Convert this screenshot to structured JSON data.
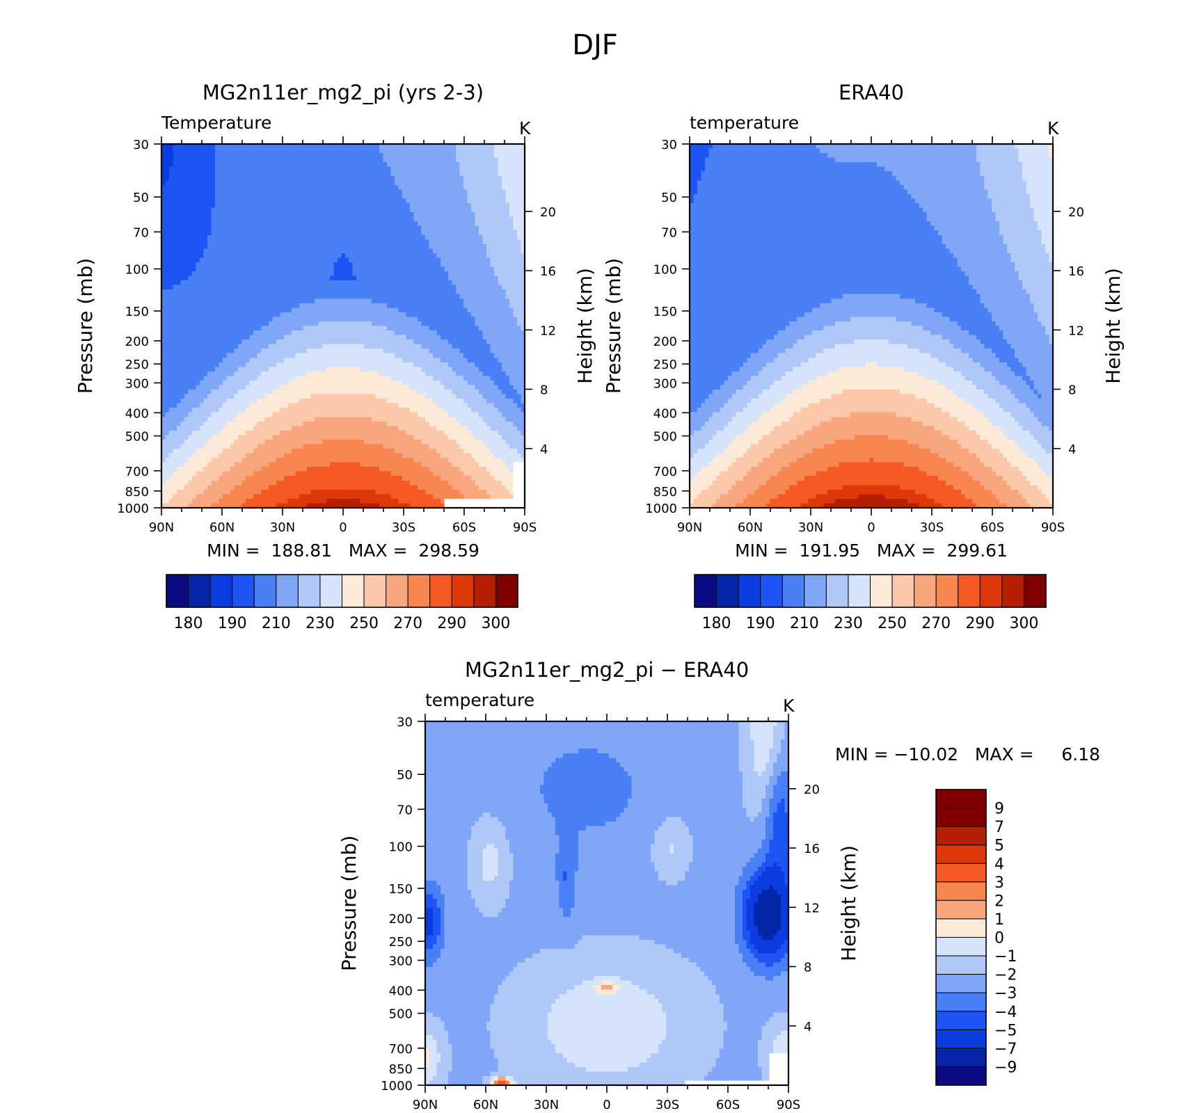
{
  "figure_title": "DJF",
  "colors": {
    "abs_palette": [
      "#0a0a82",
      "#0626a8",
      "#0a3ce0",
      "#1d55f5",
      "#4a80f5",
      "#7fa6f7",
      "#b0c8f8",
      "#d5e4fb",
      "#fde9d8",
      "#fbc9aa",
      "#f8a67e",
      "#f78650",
      "#f55a24",
      "#dd3808",
      "#b52005",
      "#800000"
    ],
    "diff_palette": [
      "#0a0a82",
      "#0626a8",
      "#0a3ce0",
      "#1d55f5",
      "#4a80f5",
      "#7fa6f7",
      "#b0c8f8",
      "#d5e4fb",
      "#fde9d8",
      "#f8a67e",
      "#f78650",
      "#f55a24",
      "#dd3808",
      "#b52005",
      "#800000"
    ],
    "missing": "#ffffff"
  },
  "chart_data": [
    {
      "id": "model",
      "type": "heatmap",
      "title": "MG2n11er_mg2_pi (yrs 2-3)",
      "subtitle_left": "Temperature",
      "units": "K",
      "xlabel": "",
      "ylabel": "Pressure (mb)",
      "ylabel_right": "Height (km)",
      "x_ticks": [
        90,
        60,
        30,
        0,
        -30,
        -60,
        -90
      ],
      "x_tick_labels": [
        "90N",
        "60N",
        "30N",
        "0",
        "30S",
        "60S",
        "90S"
      ],
      "y_ticks": [
        30,
        50,
        70,
        100,
        150,
        200,
        250,
        300,
        400,
        500,
        700,
        850,
        1000
      ],
      "y_ticks_right": [
        4,
        8,
        12,
        16,
        20
      ],
      "stat_text": "MIN =  188.81   MAX =  298.59",
      "min": 188.81,
      "max": 298.59,
      "colorbar_labels": [
        "180",
        "190",
        "210",
        "230",
        "250",
        "270",
        "290",
        "300"
      ],
      "missing_polar_south": true
    },
    {
      "id": "obs",
      "type": "heatmap",
      "title": "ERA40",
      "subtitle_left": "temperature",
      "units": "K",
      "xlabel": "",
      "ylabel": "Pressure (mb)",
      "ylabel_right": "Height (km)",
      "x_ticks": [
        90,
        60,
        30,
        0,
        -30,
        -60,
        -90
      ],
      "x_tick_labels": [
        "90N",
        "60N",
        "30N",
        "0",
        "30S",
        "60S",
        "90S"
      ],
      "y_ticks": [
        30,
        50,
        70,
        100,
        150,
        200,
        250,
        300,
        400,
        500,
        700,
        850,
        1000
      ],
      "y_ticks_right": [
        4,
        8,
        12,
        16,
        20
      ],
      "stat_text": "MIN =  191.95   MAX =  299.61",
      "min": 191.95,
      "max": 299.61,
      "colorbar_labels": [
        "180",
        "190",
        "210",
        "230",
        "250",
        "270",
        "290",
        "300"
      ],
      "missing_polar_south": false
    },
    {
      "id": "diff",
      "type": "heatmap",
      "title": "MG2n11er_mg2_pi − ERA40",
      "subtitle_left": "temperature",
      "units": "K",
      "xlabel": "",
      "ylabel": "Pressure (mb)",
      "ylabel_right": "Height (km)",
      "x_ticks": [
        90,
        60,
        30,
        0,
        -30,
        -60,
        -90
      ],
      "x_tick_labels": [
        "90N",
        "60N",
        "30N",
        "0",
        "30S",
        "60S",
        "90S"
      ],
      "y_ticks": [
        30,
        50,
        70,
        100,
        150,
        200,
        250,
        300,
        400,
        500,
        700,
        850,
        1000
      ],
      "y_ticks_right": [
        4,
        8,
        12,
        16,
        20
      ],
      "stat_text": "MIN = −10.02   MAX =     6.18",
      "min": -10.02,
      "max": 6.18,
      "colorbar_labels": [
        "9",
        "7",
        "5",
        "4",
        "3",
        "2",
        "1",
        "0",
        "−1",
        "−2",
        "−3",
        "−4",
        "−5",
        "−7",
        "−9"
      ]
    }
  ]
}
